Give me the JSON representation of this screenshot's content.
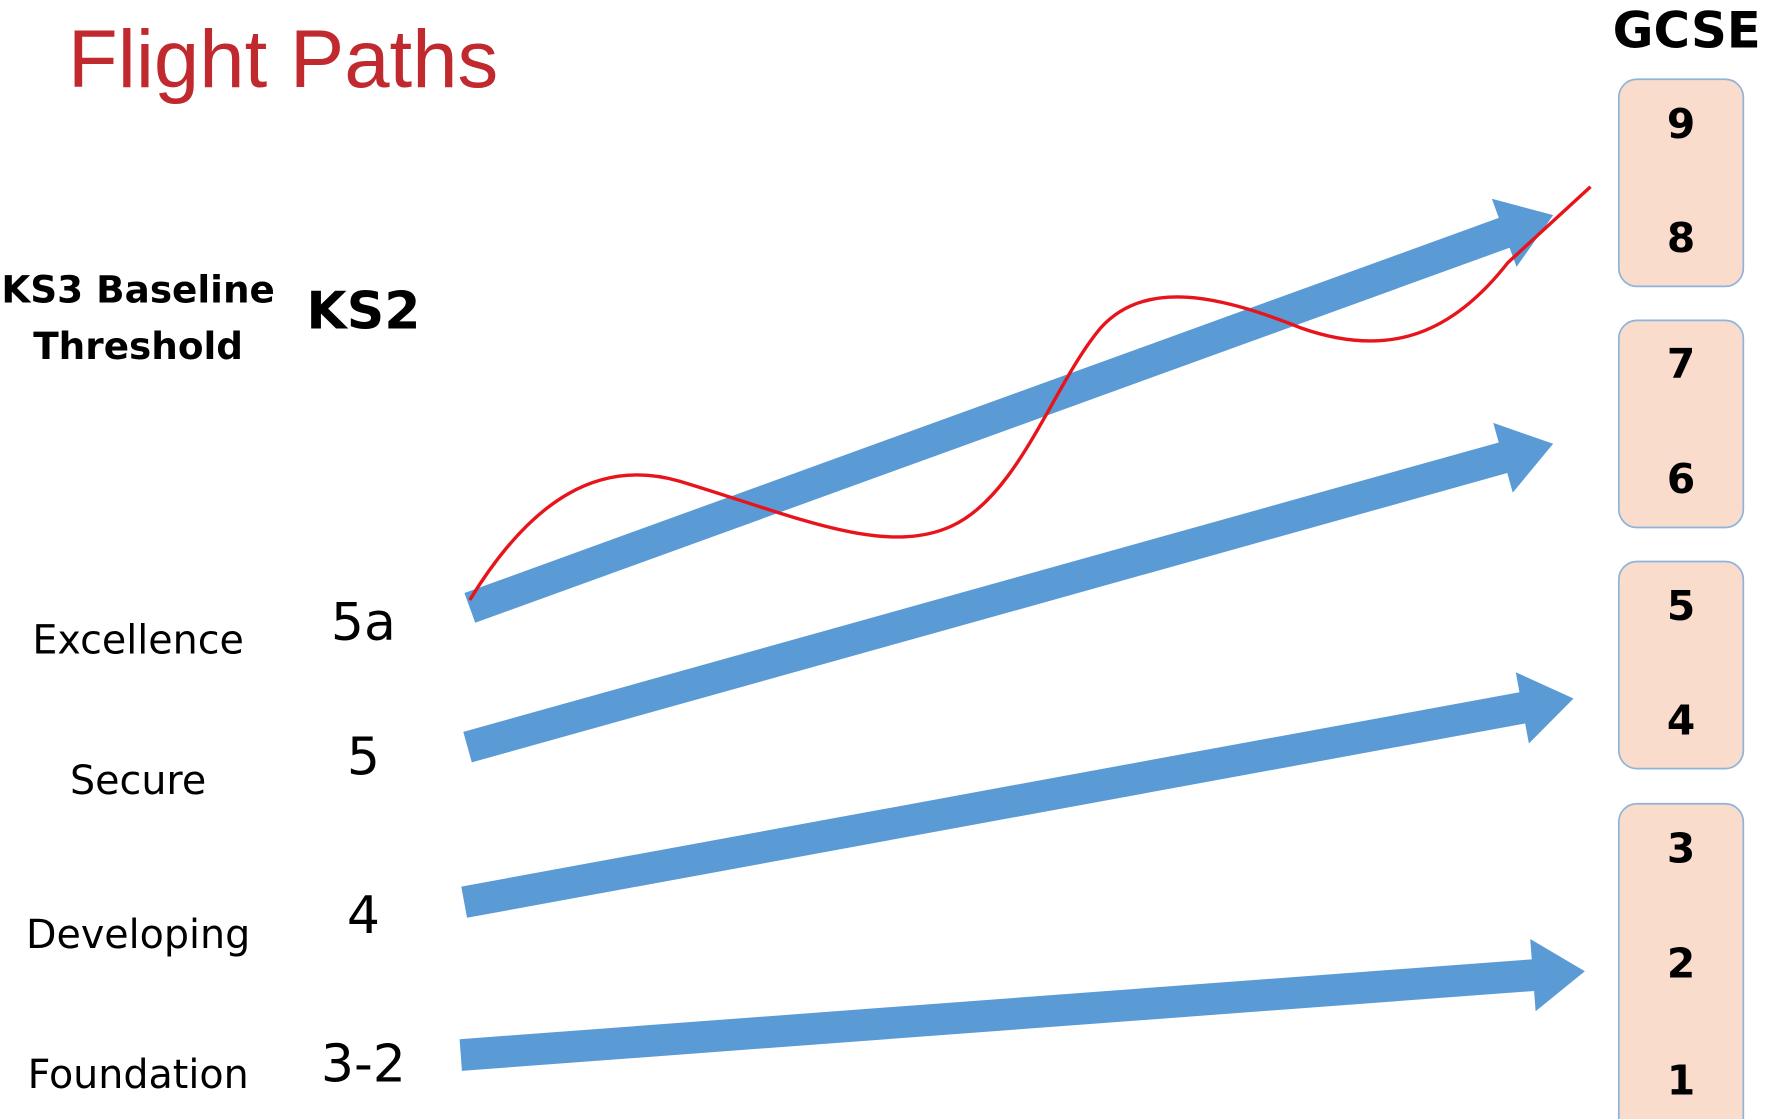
{
  "title": "Flight Paths",
  "ks3_header": [
    "KS3 Baseline",
    "Threshold"
  ],
  "ks2_header": "KS2",
  "gcse_header": "GCSE",
  "rows": [
    {
      "threshold": "Excellence",
      "ks2": "5a"
    },
    {
      "threshold": "Secure",
      "ks2": "5"
    },
    {
      "threshold": "Developing",
      "ks2": "4"
    },
    {
      "threshold": "Foundation",
      "ks2": "3-2"
    }
  ],
  "gcse_groups": [
    [
      "9",
      "8"
    ],
    [
      "7",
      "6"
    ],
    [
      "5",
      "4"
    ],
    [
      "3",
      "2",
      "1"
    ]
  ]
}
